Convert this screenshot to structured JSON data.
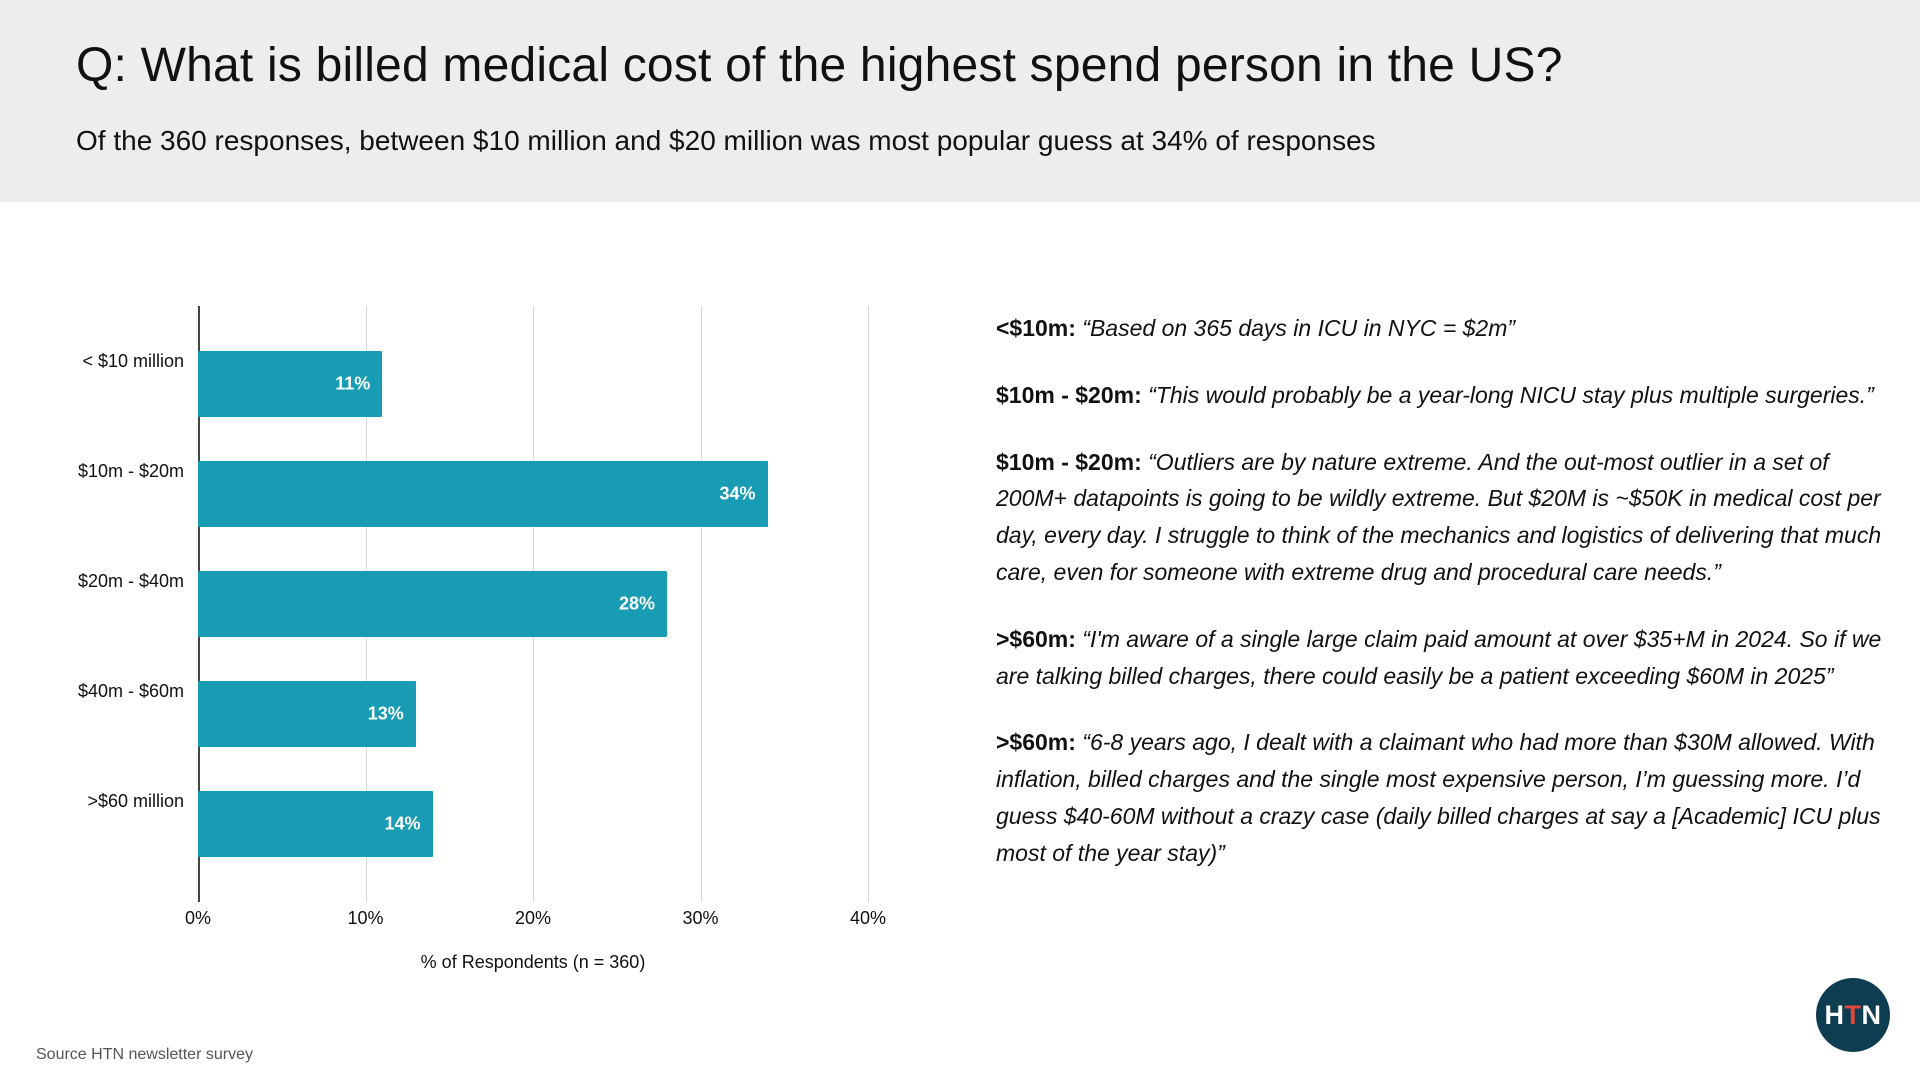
{
  "header": {
    "title": "Q: What is billed medical cost of the highest spend person in the US?",
    "subtitle": "Of the 360 responses, between $10 million and $20 million was most popular guess at 34% of responses"
  },
  "chart_data": {
    "type": "bar",
    "orientation": "horizontal",
    "title": "",
    "categories": [
      "< $10 million",
      "$10m - $20m",
      "$20m - $40m",
      "$40m - $60m",
      ">$60 million"
    ],
    "values": [
      11,
      34,
      28,
      13,
      14
    ],
    "value_labels": [
      "11%",
      "34%",
      "28%",
      "13%",
      "14%"
    ],
    "xlabel": "% of Respondents (n = 360)",
    "x_ticks": [
      "0%",
      "10%",
      "20%",
      "30%",
      "40%"
    ],
    "xlim": [
      0,
      40
    ],
    "bar_color": "#179cb4",
    "grid": true,
    "legend": "none"
  },
  "quotes": [
    {
      "label": "<$10m:",
      "text": "“Based on 365 days in ICU in NYC = $2m”"
    },
    {
      "label": "$10m - $20m:",
      "text": "“This would probably be a year-long NICU stay plus multiple surgeries.”"
    },
    {
      "label": "$10m - $20m:",
      "text": "“Outliers are by nature extreme. And the out-most outlier in a set of 200M+ datapoints is going to be wildly extreme. But $20M is ~$50K in medical cost per day, every day. I struggle to think of the mechanics and logistics of delivering that much care, even for someone with extreme drug and procedural care needs.”"
    },
    {
      "label": ">$60m:",
      "text": "“I'm aware of a single large claim paid amount at over $35+M in 2024. So if we are talking billed charges, there could easily be a patient exceeding $60M in 2025”"
    },
    {
      "label": ">$60m:",
      "text": "“6-8 years ago, I dealt with a claimant who had more than $30M allowed. With inflation, billed charges and the single most expensive person, I’m guessing more. I’d guess $40-60M without a crazy case (daily billed charges at say a [Academic] ICU plus most of the year stay)”"
    }
  ],
  "footer": {
    "source": "Source HTN newsletter survey",
    "logo_text": "HTN"
  }
}
